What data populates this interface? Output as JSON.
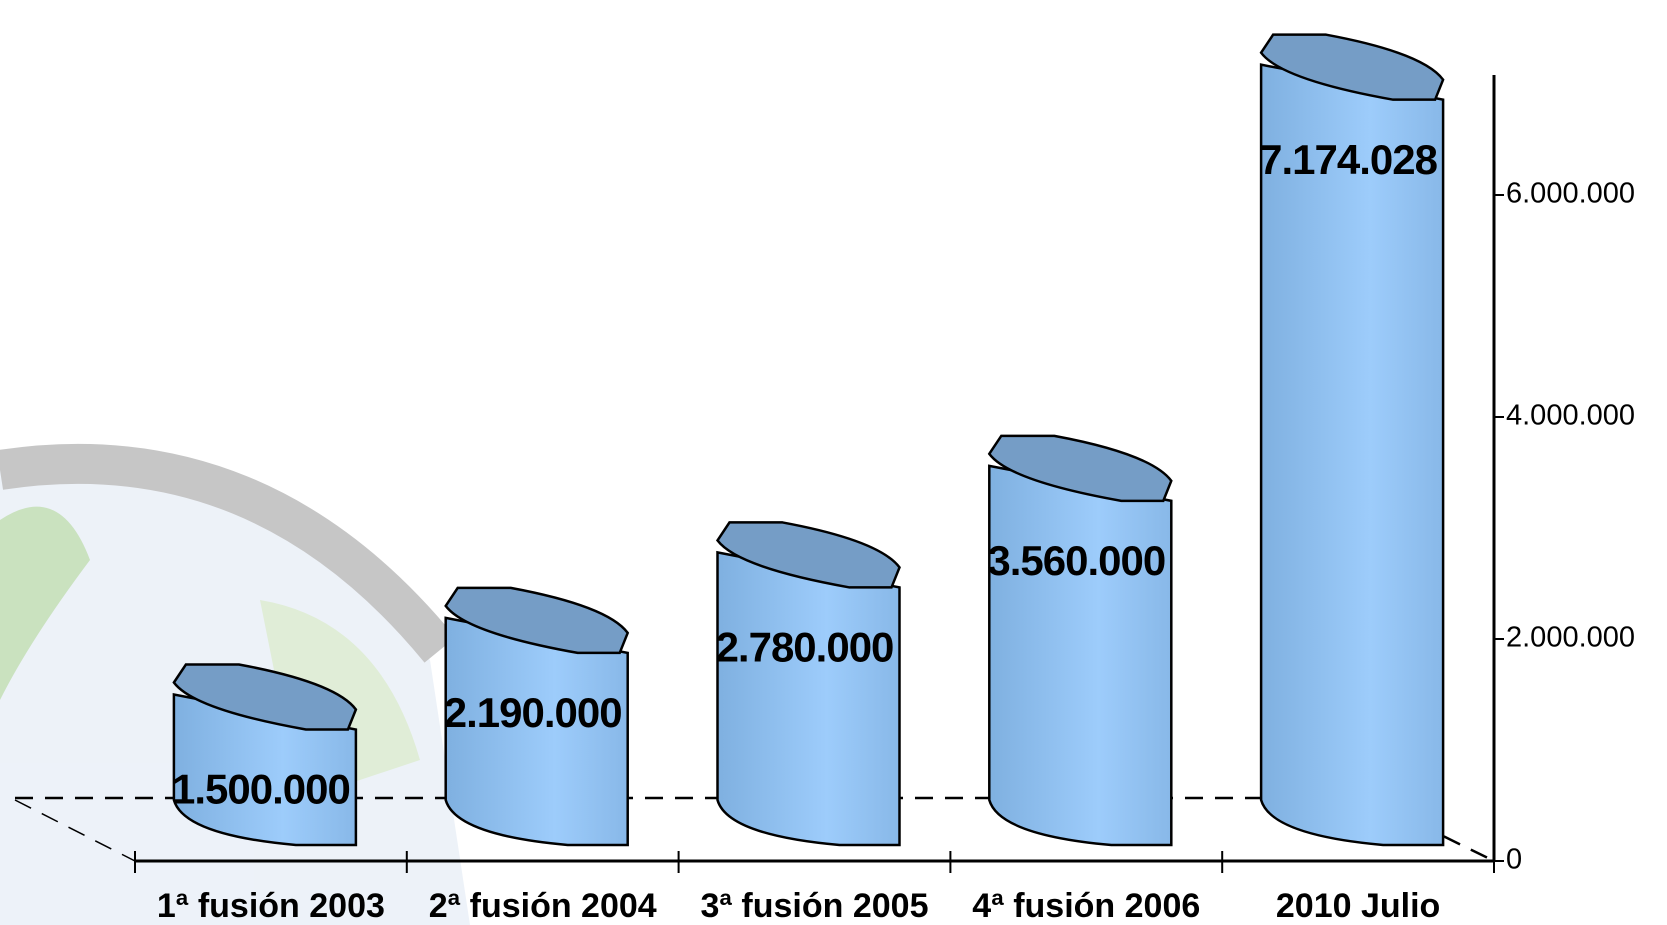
{
  "chart_data": {
    "type": "bar",
    "categories": [
      "1ª fusión 2003",
      "2ª fusión 2004",
      "3ª fusión 2005",
      "4ª fusión 2006",
      "2010 Julio"
    ],
    "values": [
      1500000,
      2190000,
      2780000,
      3560000,
      7174028
    ],
    "value_labels": [
      "1.500.000",
      "2.190.000",
      "2.780.000",
      "3.560.000",
      "7.174.028"
    ],
    "color": "#99c9fb",
    "ylim": [
      0,
      7000000
    ],
    "yticks": [
      0,
      {
        "value": 2000000,
        "label": "2.000.000"
      },
      {
        "value": 4000000,
        "label": "4.000.000"
      },
      {
        "value": 6000000,
        "label": "6.000.000"
      }
    ]
  }
}
